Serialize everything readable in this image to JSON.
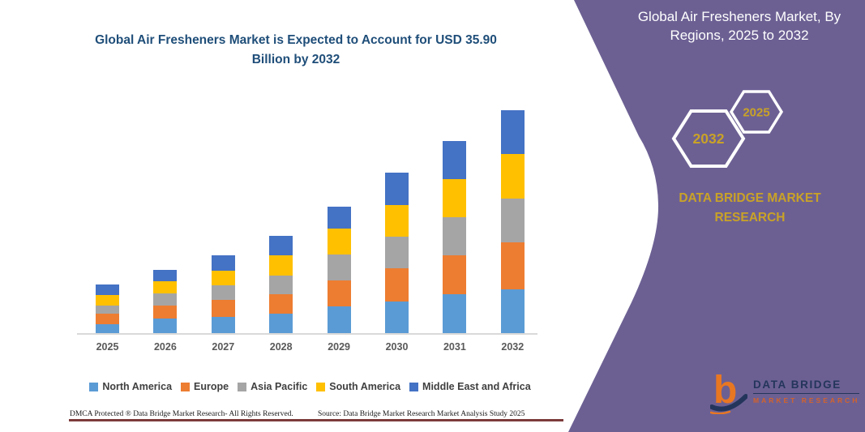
{
  "page": {
    "chart_title": "Global Air Fresheners Market is Expected to Account for USD 35.90 Billion by 2032",
    "footer_left": "DMCA Protected ® Data Bridge Market Research-  All Rights Reserved.",
    "footer_right": "Source: Data Bridge Market Research  Market Analysis Study 2025"
  },
  "side_panel": {
    "title": "Global Air Fresheners Market, By Regions, 2025 to 2032",
    "hexagons": [
      {
        "label": "2032"
      },
      {
        "label": "2025"
      }
    ],
    "brand_text": "DATA BRIDGE MARKET RESEARCH",
    "logo": {
      "line1": "DATA BRIDGE",
      "line2": "MARKET RESEARCH"
    }
  },
  "chart_data": {
    "type": "bar",
    "subtype": "stacked-vertical",
    "title": "Global Air Fresheners Market is Expected to Account for USD 35.90 Billion by 2032",
    "unit": "USD Billion",
    "xlabel": "",
    "ylabel": "",
    "ylim": [
      0,
      36
    ],
    "grid": false,
    "legend_position": "bottom",
    "categories": [
      "2025",
      "2026",
      "2027",
      "2028",
      "2029",
      "2030",
      "2031",
      "2032"
    ],
    "series": [
      {
        "name": "North America",
        "color": "#5B9BD5",
        "values": [
          1.4,
          2.3,
          2.6,
          3.2,
          4.3,
          5.1,
          6.3,
          7.0
        ]
      },
      {
        "name": "Europe",
        "color": "#ED7D31",
        "values": [
          1.8,
          2.1,
          2.7,
          3.1,
          4.2,
          5.3,
          6.3,
          7.6
        ]
      },
      {
        "name": "Asia Pacific",
        "color": "#A5A5A5",
        "values": [
          1.3,
          2.0,
          2.4,
          3.0,
          4.1,
          5.1,
          6.1,
          7.1
        ]
      },
      {
        "name": "South America",
        "color": "#FFC000",
        "values": [
          1.6,
          2.0,
          2.4,
          3.2,
          4.2,
          5.1,
          6.1,
          7.2
        ]
      },
      {
        "name": "Middle East and Africa",
        "color": "#4472C4",
        "values": [
          1.7,
          1.8,
          2.5,
          3.2,
          3.6,
          5.3,
          6.2,
          7.0
        ]
      }
    ],
    "totals_estimated": [
      7.8,
      10.2,
      12.6,
      15.7,
      20.4,
      25.9,
      31.0,
      35.9
    ]
  },
  "colors": {
    "panel_purple": "#6C6093",
    "gold": "#C9A227",
    "title_blue": "#1F4E79",
    "axis_gray": "#D9D9D9",
    "label_gray": "#595959",
    "maroon_line": "#7D3B3B",
    "logo_navy": "#24355B",
    "logo_orange": "#E87722"
  }
}
